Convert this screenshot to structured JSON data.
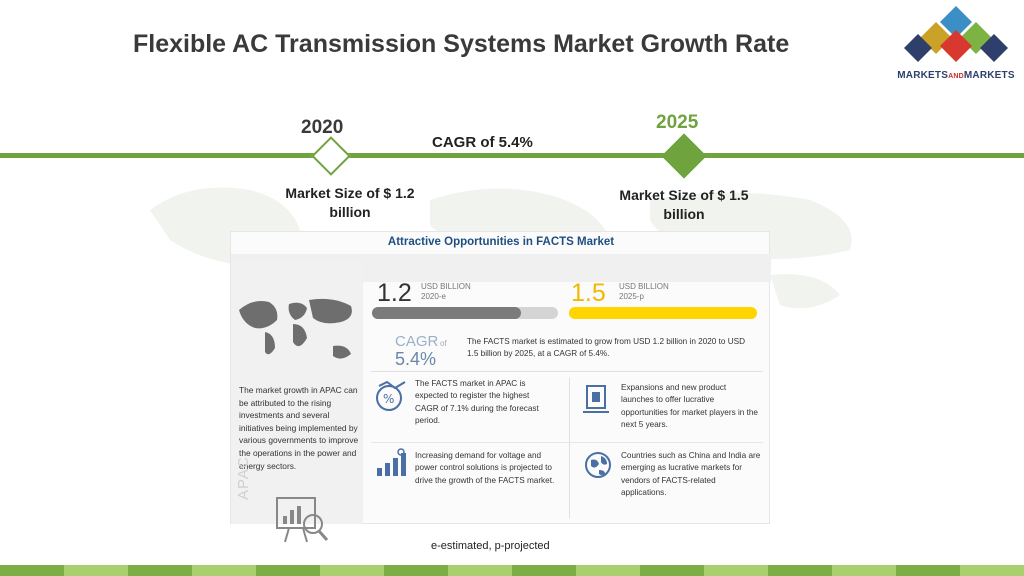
{
  "slide": {
    "title": "Flexible AC Transmission Systems Market Growth Rate",
    "logo": {
      "name": "markets-and-markets-logo",
      "text_left": "MARKETS",
      "text_mid": "AND",
      "text_right": "MARKETS"
    },
    "timeline": {
      "start": {
        "year": "2020",
        "market_size": "Market Size of $ 1.2 billion"
      },
      "end": {
        "year": "2025",
        "market_size": "Market Size of $ 1.5 billion"
      },
      "cagr": "CAGR of 5.4%"
    },
    "colors": {
      "accent_green": "#6fa33e",
      "yellow": "#ffd400",
      "panel_title_blue": "#1f4f82"
    },
    "footnote": "e-estimated, p-projected"
  },
  "infographic": {
    "title": "Attractive Opportunities in FACTS Market",
    "apac_text": "The market growth in APAC can be attributed to the rising investments and several initiatives being implemented by various governments to improve the operations in the power and energy sectors.",
    "apac_label": "APAC",
    "value_2020": {
      "number": "1.2",
      "unit": "USD BILLION",
      "tag": "2020-e",
      "bar_fraction": 0.8
    },
    "value_2025": {
      "number": "1.5",
      "unit": "USD BILLION",
      "tag": "2025-p",
      "bar_fraction": 1.0
    },
    "cagr": {
      "label": "CAGR",
      "of": "of",
      "value": "5.4%"
    },
    "summary": "The FACTS market is estimated to grow from USD 1.2 billion in 2020 to USD 1.5 billion by 2025, at a CAGR of 5.4%.",
    "cells": [
      {
        "icon": "percent-chart-icon",
        "text": "The FACTS market in APAC is expected to register the highest CAGR of 7.1% during the forecast period."
      },
      {
        "icon": "launch-product-icon",
        "text": "Expansions and new product launches to offer lucrative opportunities for market players in the next 5 years."
      },
      {
        "icon": "bar-growth-icon",
        "text": "Increasing demand for voltage and power control solutions is projected to drive the growth of the FACTS market."
      },
      {
        "icon": "globe-icon",
        "text": "Countries such as China and India are emerging as lucrative markets for vendors of FACTS-related applications."
      }
    ]
  }
}
